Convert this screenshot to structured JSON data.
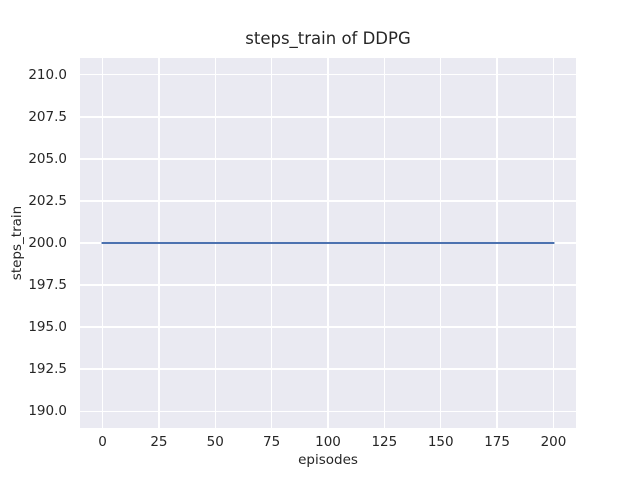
{
  "figure": {
    "title": "steps_train of DDPG"
  },
  "chart_data": {
    "type": "line",
    "title": "steps_train of DDPG",
    "xlabel": "episodes",
    "ylabel": "steps_train",
    "xlim": [
      -10,
      210
    ],
    "ylim": [
      189,
      211
    ],
    "x_ticks": [
      0,
      25,
      50,
      75,
      100,
      125,
      150,
      175,
      200
    ],
    "x_tick_labels": [
      "0",
      "25",
      "50",
      "75",
      "100",
      "125",
      "150",
      "175",
      "200"
    ],
    "y_ticks": [
      190,
      192.5,
      195,
      197.5,
      200,
      202.5,
      205,
      207.5,
      210
    ],
    "y_tick_labels": [
      "190.0",
      "192.5",
      "195.0",
      "197.5",
      "200.0",
      "202.5",
      "205.0",
      "207.5",
      "210.0"
    ],
    "grid": true,
    "legend": "none",
    "series": [
      {
        "name": "steps_train",
        "color": "#4c72b0",
        "x": [
          0,
          200
        ],
        "y": [
          200,
          200
        ],
        "description": "constant value 200 steps for every episode from 0 to 200"
      }
    ],
    "colors": {
      "figure_background": "#ffffff",
      "axes_background": "#eaeaf2",
      "grid": "#ffffff",
      "text": "#262626",
      "line": "#4c72b0"
    }
  }
}
